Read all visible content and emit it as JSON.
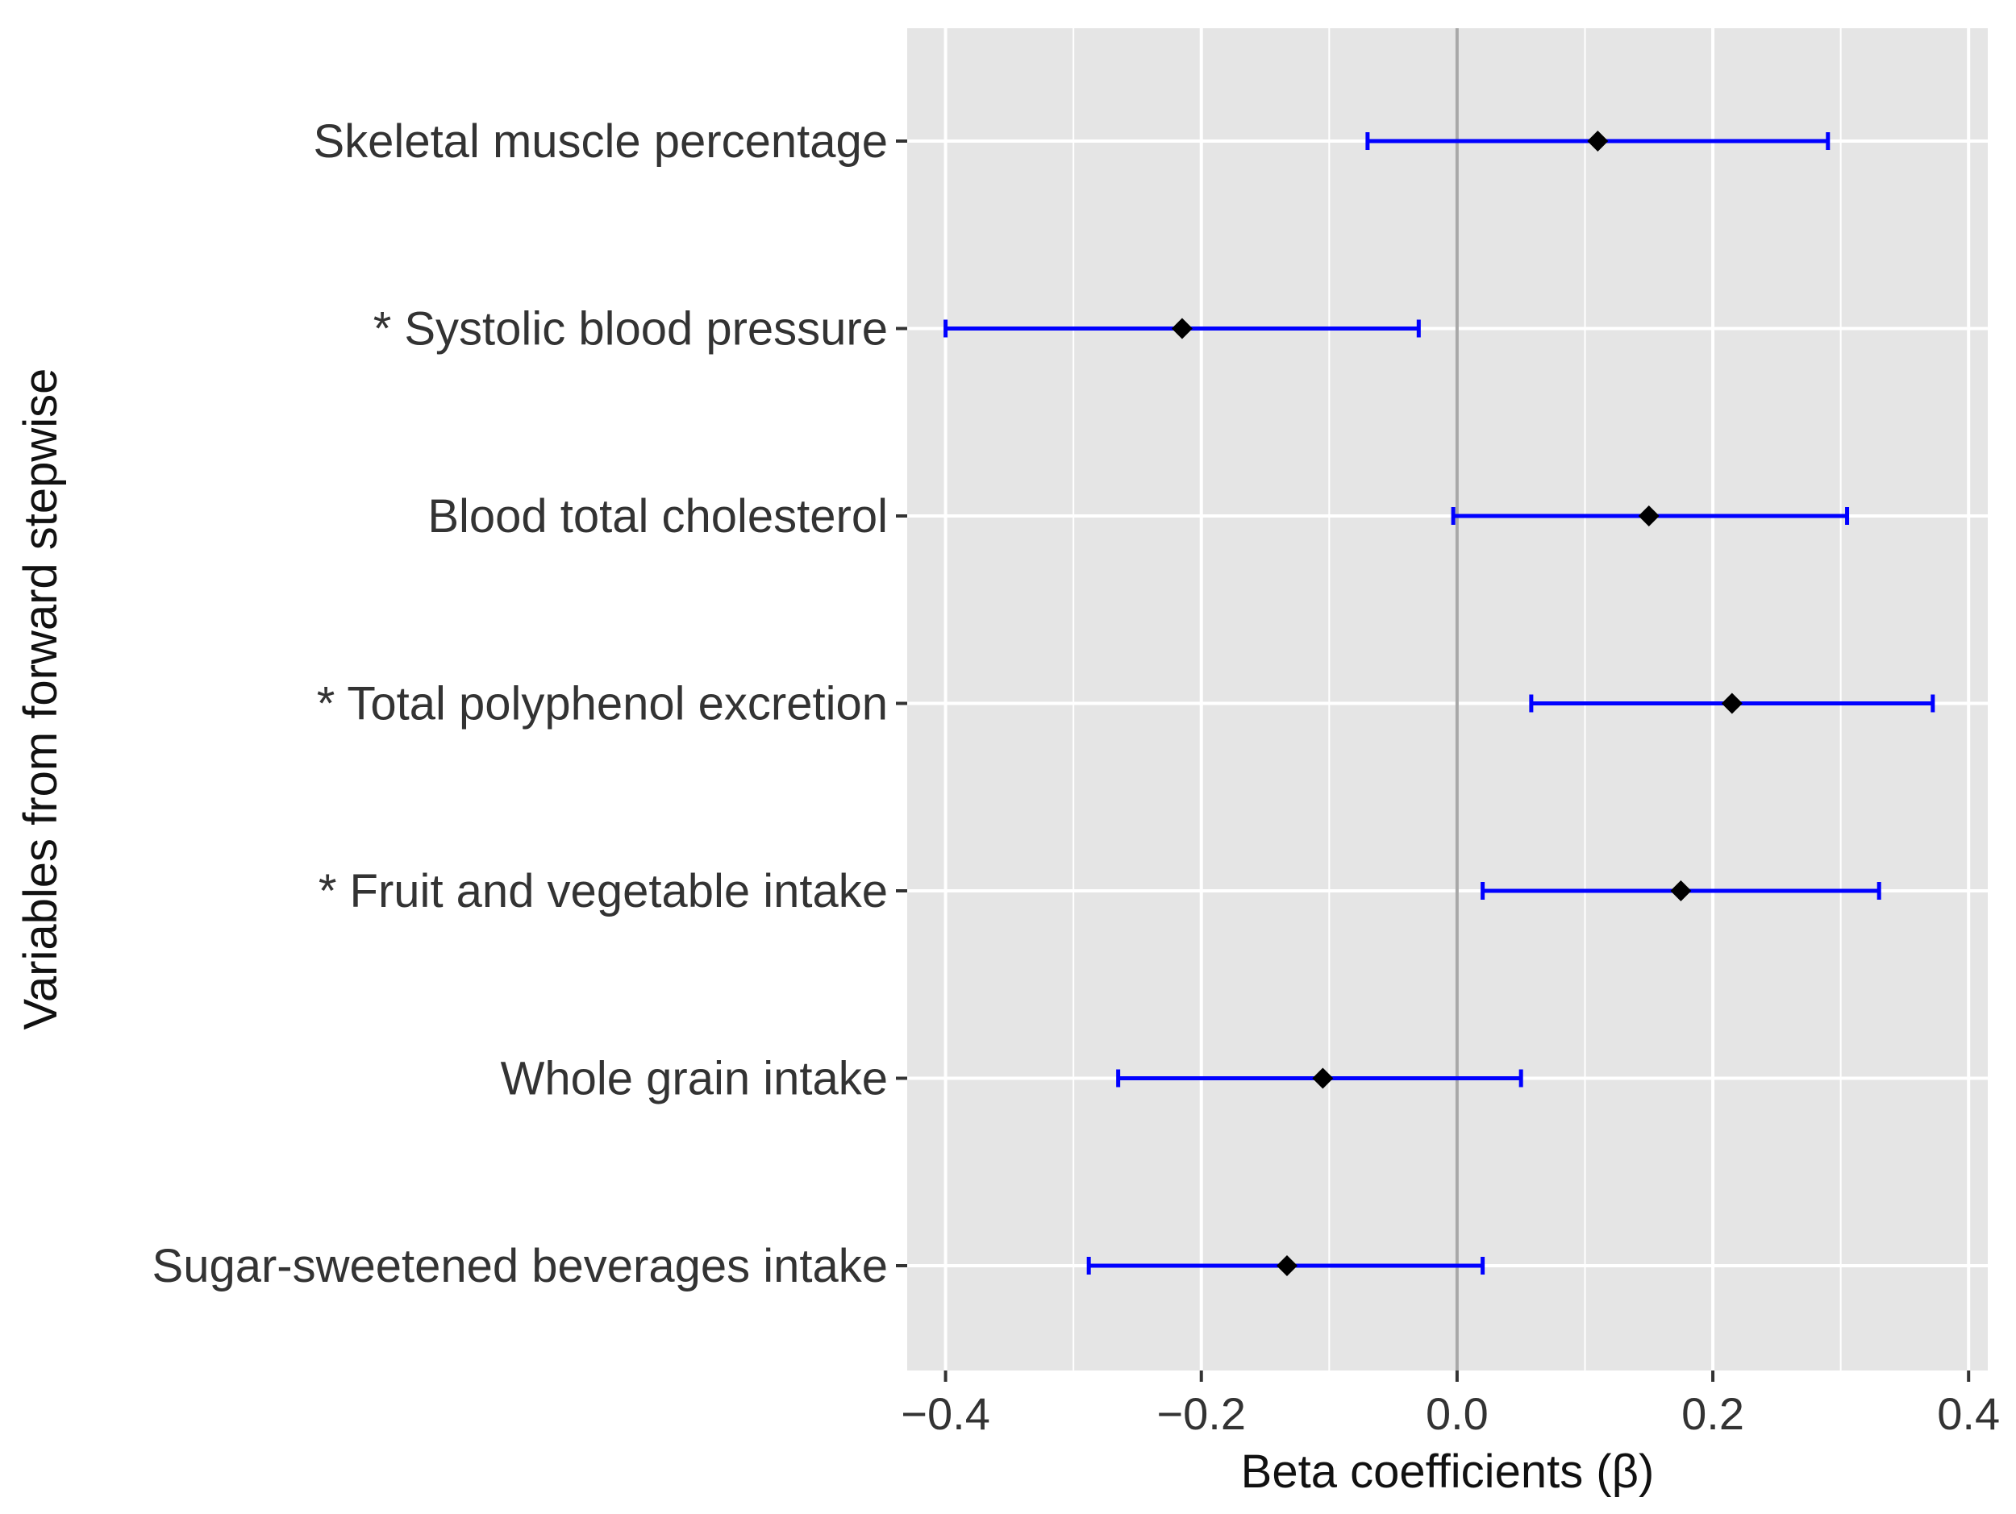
{
  "chart_data": {
    "type": "forest",
    "title": "",
    "xlabel": "Beta coefficients (β)",
    "ylabel": "Variables from forward stepwise",
    "xlim": [
      -0.43,
      0.415
    ],
    "x_ticks": [
      -0.4,
      -0.2,
      0.0,
      0.2,
      0.4
    ],
    "x_tick_labels": [
      "−0.4",
      "−0.2",
      "0.0",
      "0.2",
      "0.4"
    ],
    "reference_line": 0.0,
    "grid": true,
    "legend": "none",
    "colors": {
      "panel_background": "#e5e5e5",
      "grid": "#ffffff",
      "error_bar": "#0000ff",
      "point": "#000000",
      "reference_line": "#a8a8a8"
    },
    "rows": [
      {
        "label": "Skeletal muscle percentage",
        "beta": 0.11,
        "lower": -0.07,
        "upper": 0.29
      },
      {
        "label": "* Systolic blood pressure",
        "beta": -0.215,
        "lower": -0.4,
        "upper": -0.03
      },
      {
        "label": "Blood total cholesterol",
        "beta": 0.15,
        "lower": -0.003,
        "upper": 0.305
      },
      {
        "label": "* Total polyphenol excretion",
        "beta": 0.215,
        "lower": 0.058,
        "upper": 0.372
      },
      {
        "label": "* Fruit and vegetable intake",
        "beta": 0.175,
        "lower": 0.02,
        "upper": 0.33
      },
      {
        "label": "Whole grain intake",
        "beta": -0.105,
        "lower": -0.265,
        "upper": 0.05
      },
      {
        "label": "Sugar-sweetened beverages intake",
        "beta": -0.133,
        "lower": -0.288,
        "upper": 0.02
      }
    ]
  }
}
